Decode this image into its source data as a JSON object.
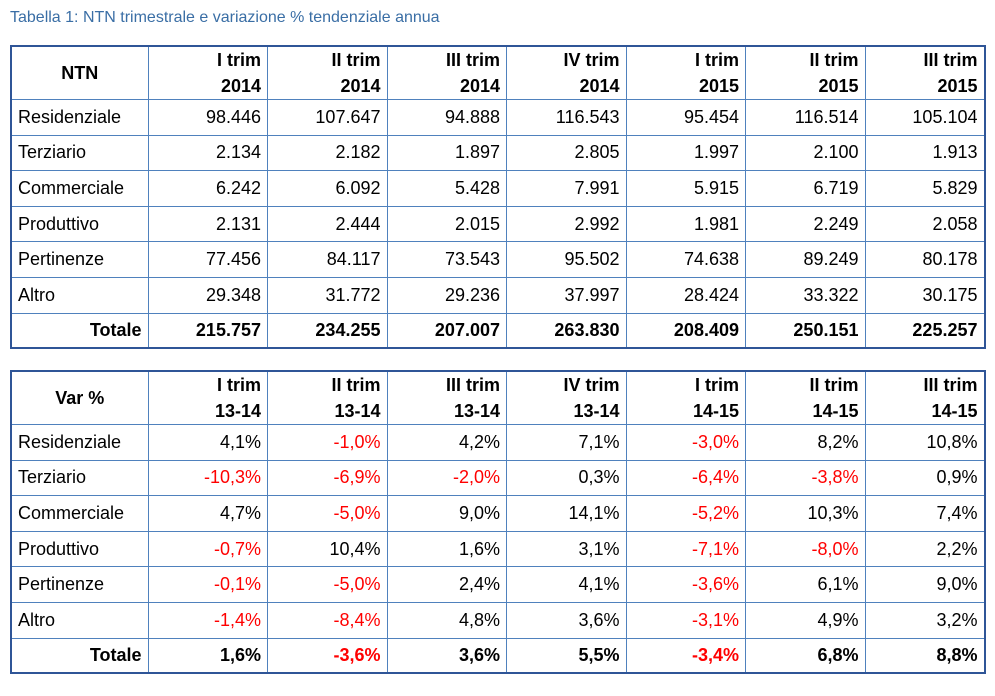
{
  "caption": "Tabella 1: NTN trimestrale e variazione % tendenziale annua",
  "colors": {
    "caption": "#3a6ea5",
    "border": "#2f5597",
    "negative": "#ff0000"
  },
  "ntn_table": {
    "corner": "NTN",
    "columns": [
      {
        "line1": "I trim",
        "line2": "2014"
      },
      {
        "line1": "II trim",
        "line2": "2014"
      },
      {
        "line1": "III trim",
        "line2": "2014"
      },
      {
        "line1": "IV trim",
        "line2": "2014"
      },
      {
        "line1": "I trim",
        "line2": "2015"
      },
      {
        "line1": "II trim",
        "line2": "2015"
      },
      {
        "line1": "III trim",
        "line2": "2015"
      }
    ],
    "rows": [
      {
        "label": "Residenziale",
        "values": [
          "98.446",
          "107.647",
          "94.888",
          "116.543",
          "95.454",
          "116.514",
          "105.104"
        ]
      },
      {
        "label": "Terziario",
        "values": [
          "2.134",
          "2.182",
          "1.897",
          "2.805",
          "1.997",
          "2.100",
          "1.913"
        ]
      },
      {
        "label": "Commerciale",
        "values": [
          "6.242",
          "6.092",
          "5.428",
          "7.991",
          "5.915",
          "6.719",
          "5.829"
        ]
      },
      {
        "label": "Produttivo",
        "values": [
          "2.131",
          "2.444",
          "2.015",
          "2.992",
          "1.981",
          "2.249",
          "2.058"
        ]
      },
      {
        "label": "Pertinenze",
        "values": [
          "77.456",
          "84.117",
          "73.543",
          "95.502",
          "74.638",
          "89.249",
          "80.178"
        ]
      },
      {
        "label": "Altro",
        "values": [
          "29.348",
          "31.772",
          "29.236",
          "37.997",
          "28.424",
          "33.322",
          "30.175"
        ]
      }
    ],
    "total": {
      "label": "Totale",
      "values": [
        "215.757",
        "234.255",
        "207.007",
        "263.830",
        "208.409",
        "250.151",
        "225.257"
      ]
    }
  },
  "var_table": {
    "corner": "Var %",
    "columns": [
      {
        "line1": "I trim",
        "line2": "13-14"
      },
      {
        "line1": "II trim",
        "line2": "13-14"
      },
      {
        "line1": "III trim",
        "line2": "13-14"
      },
      {
        "line1": "IV trim",
        "line2": "13-14"
      },
      {
        "line1": "I trim",
        "line2": "14-15"
      },
      {
        "line1": "II trim",
        "line2": "14-15"
      },
      {
        "line1": "III trim",
        "line2": "14-15"
      }
    ],
    "rows": [
      {
        "label": "Residenziale",
        "values": [
          "4,1%",
          "-1,0%",
          "4,2%",
          "7,1%",
          "-3,0%",
          "8,2%",
          "10,8%"
        ]
      },
      {
        "label": "Terziario",
        "values": [
          "-10,3%",
          "-6,9%",
          "-2,0%",
          "0,3%",
          "-6,4%",
          "-3,8%",
          "0,9%"
        ]
      },
      {
        "label": "Commerciale",
        "values": [
          "4,7%",
          "-5,0%",
          "9,0%",
          "14,1%",
          "-5,2%",
          "10,3%",
          "7,4%"
        ]
      },
      {
        "label": "Produttivo",
        "values": [
          "-0,7%",
          "10,4%",
          "1,6%",
          "3,1%",
          "-7,1%",
          "-8,0%",
          "2,2%"
        ]
      },
      {
        "label": "Pertinenze",
        "values": [
          "-0,1%",
          "-5,0%",
          "2,4%",
          "4,1%",
          "-3,6%",
          "6,1%",
          "9,0%"
        ]
      },
      {
        "label": "Altro",
        "values": [
          "-1,4%",
          "-8,4%",
          "4,8%",
          "3,6%",
          "-3,1%",
          "4,9%",
          "3,2%"
        ]
      }
    ],
    "total": {
      "label": "Totale",
      "values": [
        "1,6%",
        "-3,6%",
        "3,6%",
        "5,5%",
        "-3,4%",
        "6,8%",
        "8,8%"
      ]
    }
  }
}
